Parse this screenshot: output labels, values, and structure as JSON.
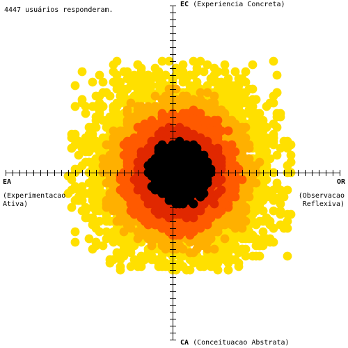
{
  "caption": "4447 usuários responderam.",
  "labels": {
    "ec_code": "EC",
    "ec_name": "(Experiencia Concreta)",
    "ca_code": "CA",
    "ca_name": "(Conceituacao Abstrata)",
    "ea_code": "EA",
    "ea_name_1": "(Experimentacao",
    "ea_name_2": "Ativa)",
    "or_code": "OR",
    "or_name_1": "(Observacao",
    "or_name_2": "Reflexiva)"
  },
  "colors": {
    "axis": "#000000",
    "density_low": "#FFE000",
    "density_mid_low": "#FFB000",
    "density_mid_high": "#FF5A00",
    "density_high": "#E02800",
    "density_peak": "#000000"
  },
  "chart_data": {
    "type": "scatter",
    "style": "density scatter (point color = local concentration of respondents)",
    "n": 4447,
    "axes": {
      "horizontal": {
        "negative_end": "EA (Experimentacao Ativa)",
        "positive_end": "OR (Observacao Reflexiva)"
      },
      "vertical": {
        "positive_end": "EC (Experiencia Concreta)",
        "negative_end": "CA (Conceituacao Abstrata)"
      }
    },
    "x_range": [
      -24,
      24
    ],
    "y_range": [
      -24,
      24
    ],
    "grid": false,
    "legend": "none",
    "distribution": {
      "center": [
        1,
        0
      ],
      "spread_x": 6.2,
      "spread_y": 6.5,
      "approx_extent_x": [
        -15,
        17
      ],
      "approx_extent_y": [
        -14,
        16
      ]
    },
    "density_levels": [
      "low",
      "mid-low",
      "mid-high",
      "high",
      "peak"
    ]
  }
}
